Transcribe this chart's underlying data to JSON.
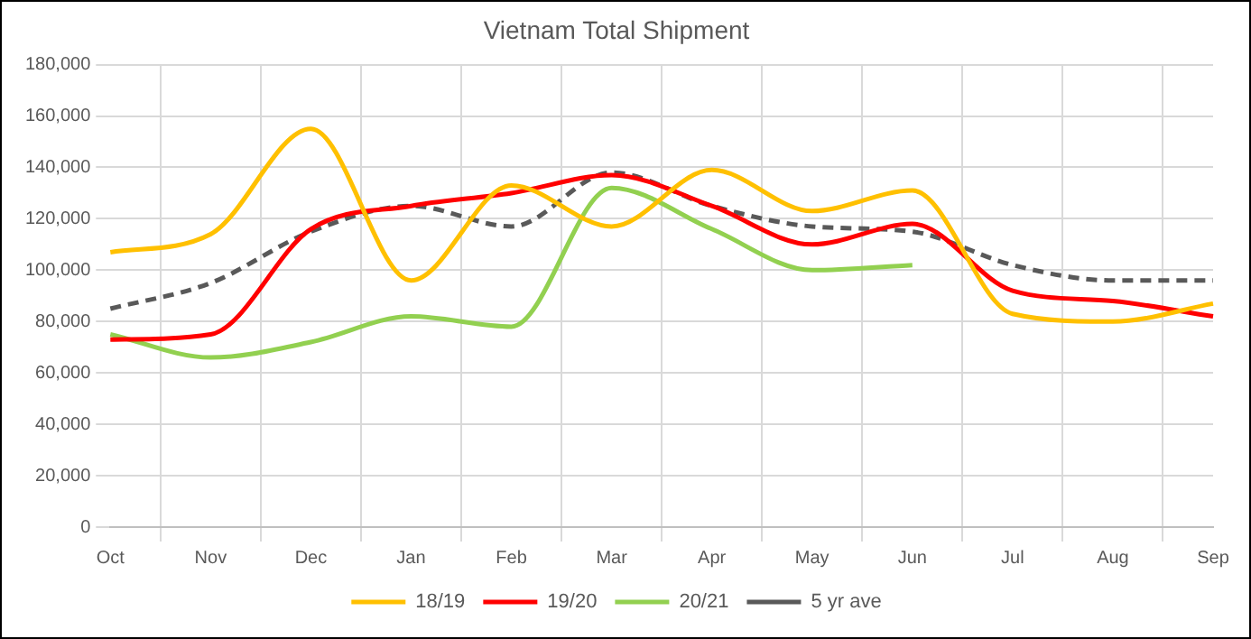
{
  "chart_data": {
    "type": "line",
    "title": "Vietnam Total Shipment",
    "categories": [
      "Oct",
      "Nov",
      "Dec",
      "Jan",
      "Feb",
      "Mar",
      "Apr",
      "May",
      "Jun",
      "Jul",
      "Aug",
      "Sep"
    ],
    "ylim": [
      0,
      180000
    ],
    "yticks": [
      {
        "value": 0,
        "label": "0"
      },
      {
        "value": 20000,
        "label": "20,000"
      },
      {
        "value": 40000,
        "label": "40,000"
      },
      {
        "value": 60000,
        "label": "60,000"
      },
      {
        "value": 80000,
        "label": "80,000"
      },
      {
        "value": 100000,
        "label": "100,000"
      },
      {
        "value": 120000,
        "label": "120,000"
      },
      {
        "value": 140000,
        "label": "140,000"
      },
      {
        "value": 160000,
        "label": "160,000"
      },
      {
        "value": 180000,
        "label": "180,000"
      }
    ],
    "grid": true,
    "legend": "bottom",
    "marker": "none",
    "series": [
      {
        "name": "18/19",
        "color": "#ffc000",
        "values": [
          107000,
          114000,
          155000,
          96000,
          133000,
          117000,
          139000,
          123000,
          131000,
          83000,
          80000,
          87000
        ]
      },
      {
        "name": "19/20",
        "color": "#ff0000",
        "values": [
          73000,
          75000,
          116000,
          125000,
          130000,
          137000,
          125000,
          110000,
          118000,
          92000,
          88000,
          82000
        ]
      },
      {
        "name": "20/21",
        "color": "#92d050",
        "values": [
          75000,
          66000,
          72000,
          82000,
          78000,
          132000,
          116000,
          100000,
          102000,
          null,
          null,
          null
        ]
      },
      {
        "name": "5 yr ave",
        "color": "#595959",
        "line_style": "dashed",
        "values": [
          85000,
          95000,
          115000,
          125000,
          117000,
          138000,
          125000,
          117000,
          115000,
          102000,
          96000,
          96000
        ]
      }
    ]
  }
}
